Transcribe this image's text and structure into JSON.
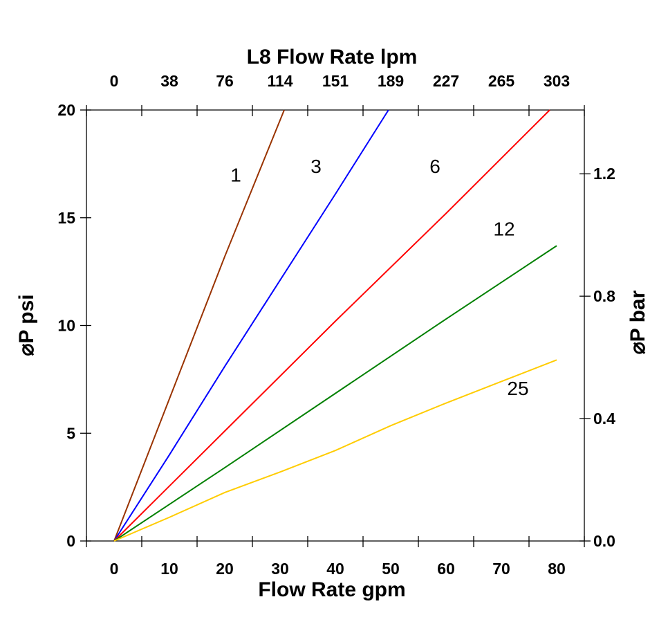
{
  "chart_data": {
    "type": "line",
    "xlabel": "Flow Rate gpm",
    "x2label": "L8  Flow Rate lpm",
    "ylabel": "⌀P psi",
    "y2label": "⌀P bar",
    "xlim": [
      -5,
      85
    ],
    "ylim": [
      0,
      20
    ],
    "grid": false,
    "x_ticks": [
      0,
      10,
      20,
      30,
      40,
      50,
      60,
      70,
      80
    ],
    "x_tick_labels": [
      "0",
      "10",
      "20",
      "30",
      "40",
      "50",
      "60",
      "70",
      "80"
    ],
    "x2_tick_labels": [
      "0",
      "38",
      "76",
      "114",
      "151",
      "189",
      "227",
      "265",
      "303"
    ],
    "y_ticks": [
      0,
      5,
      10,
      15,
      20
    ],
    "y_tick_labels": [
      "0",
      "5",
      "10",
      "15",
      "20"
    ],
    "y2_ticks_bar": [
      0.0,
      0.4,
      0.8,
      1.2
    ],
    "y2_tick_labels": [
      "0.0",
      "0.4",
      "0.8",
      "1.2"
    ],
    "psi_per_bar": 14.2,
    "series": [
      {
        "name": "1",
        "color": "#993300",
        "x": [
          0,
          10,
          20,
          30.75
        ],
        "y": [
          0,
          6.6,
          13.2,
          20
        ]
      },
      {
        "name": "3",
        "color": "#0000ff",
        "x": [
          0,
          10,
          20,
          30,
          40,
          49.6
        ],
        "y": [
          0,
          4.0,
          8.1,
          12.1,
          16.1,
          20
        ]
      },
      {
        "name": "6",
        "color": "#ff0000",
        "x": [
          0,
          20,
          40,
          60,
          78.75
        ],
        "y": [
          0,
          5.1,
          10.2,
          15.2,
          20
        ]
      },
      {
        "name": "12",
        "color": "#008000",
        "x": [
          0,
          20,
          40,
          60,
          80
        ],
        "y": [
          0,
          3.4,
          6.85,
          10.3,
          13.7
        ]
      },
      {
        "name": "25",
        "color": "#ffcc00",
        "x": [
          0,
          10,
          20,
          30,
          40,
          50,
          60,
          70,
          80
        ],
        "y": [
          0,
          1.1,
          2.25,
          3.2,
          4.2,
          5.35,
          6.4,
          7.4,
          8.4
        ]
      }
    ],
    "series_label_positions": [
      {
        "name": "1",
        "x": 22,
        "y": 17.0
      },
      {
        "name": "3",
        "x": 36.5,
        "y": 17.4
      },
      {
        "name": "6",
        "x": 58,
        "y": 17.4
      },
      {
        "name": "12",
        "x": 70.5,
        "y": 14.5
      },
      {
        "name": "25",
        "x": 73,
        "y": 7.1
      }
    ]
  }
}
